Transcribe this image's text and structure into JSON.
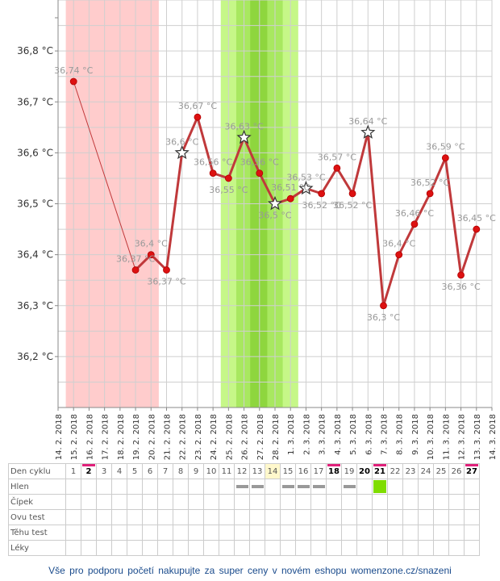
{
  "chart_data": {
    "type": "line",
    "ylim": [
      36.1,
      36.9
    ],
    "yticks": [
      36.2,
      36.3,
      36.4,
      36.5,
      36.6,
      36.7,
      36.8
    ],
    "ytick_labels": [
      "36,2 °C",
      "36,3 °C",
      "36,4 °C",
      "36,5 °C",
      "36,6 °C",
      "36,7 °C",
      "36,8 °C"
    ],
    "x": [
      "14. 2. 2018",
      "15. 2. 2018",
      "16. 2. 2018",
      "17. 2. 2018",
      "18. 2. 2018",
      "19. 2. 2018",
      "20. 2. 2018",
      "21. 2. 2018",
      "22. 2. 2018",
      "23. 2. 2018",
      "24. 2. 2018",
      "25. 2. 2018",
      "26. 2. 2018",
      "27. 2. 2018",
      "28. 2. 2018",
      "1. 3. 2018",
      "2. 3. 2018",
      "3. 3. 2018",
      "4. 3. 2018",
      "5. 3. 2018",
      "6. 3. 2018",
      "7. 3. 2018",
      "8. 3. 2018",
      "9. 3. 2018",
      "10. 3. 2018",
      "11. 3. 2018",
      "12. 3. 2018",
      "13. 3. 2018",
      "14. 3. 2018"
    ],
    "temperatures": [
      null,
      36.74,
      null,
      null,
      null,
      36.37,
      36.4,
      36.37,
      36.6,
      36.67,
      36.56,
      36.55,
      36.63,
      36.56,
      36.5,
      36.51,
      36.53,
      36.52,
      36.57,
      36.52,
      36.64,
      36.3,
      36.4,
      36.46,
      36.52,
      36.59,
      36.36,
      36.45,
      null
    ],
    "point_labels": [
      null,
      "36,74 °C",
      null,
      null,
      null,
      "36,37 °C",
      "36,4 °C",
      "36,37 °C",
      "36,6 °C",
      "36,67 °C",
      "36,56 °C",
      "36,55 °C",
      "36,63 °C",
      "36,56 °C",
      "36,5 °C",
      "36,51 °C",
      "36,53 °C",
      "36,52 °C",
      "36,57 °C",
      "36,52 °C",
      "36,64 °C",
      "36,3 °C",
      "36,4 °C",
      "36,46 °C",
      "36,52 °C",
      "36,59 °C",
      "36,36 °C",
      "36,45 °C",
      null
    ],
    "star_markers": [
      8,
      12,
      14,
      16,
      20
    ],
    "menstruation_band": [
      1,
      6
    ],
    "fertile_band": [
      11,
      15
    ],
    "fertile_peak_band": [
      12.9,
      14
    ],
    "colors": {
      "line": "#c0393b",
      "point": "#dd1111",
      "menstruation": "#ffcccc",
      "fertile": "#c6f788",
      "fertile_mid": "#a8e860",
      "fertile_peak": "#8ed63e",
      "grid": "#cfcfcf",
      "label": "#999999"
    }
  },
  "table": {
    "rows": [
      "Den cyklu",
      "Hlen",
      "Čípek",
      "Ovu test",
      "Těhu test",
      "Léky"
    ],
    "days": [
      "1",
      "2",
      "3",
      "4",
      "5",
      "6",
      "7",
      "8",
      "9",
      "10",
      "11",
      "12",
      "13",
      "14",
      "15",
      "16",
      "17",
      "18",
      "19",
      "20",
      "21",
      "22",
      "23",
      "24",
      "25",
      "26",
      "27"
    ],
    "bold_days": [
      1,
      17,
      19,
      20,
      26
    ],
    "marked_days": [
      1,
      17,
      20,
      26
    ],
    "highlight_day": 13,
    "mucus": [
      "",
      "",
      "",
      "",
      "",
      "",
      "",
      "",
      "",
      "",
      "",
      "dash",
      "dash",
      "",
      "dash",
      "dash",
      "dash",
      "",
      "dash",
      "",
      "green",
      "",
      "",
      "",
      "",
      "",
      ""
    ]
  },
  "footer": "Vše pro podporu početí nakupujte za super ceny v novém eshopu womenzone.cz/snazeni"
}
